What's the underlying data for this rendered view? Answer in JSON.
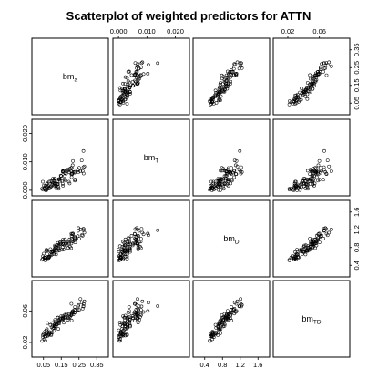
{
  "chart_data": {
    "type": "scatter-matrix",
    "title": "Scatterplot of weighted predictors for ATTN",
    "variables": [
      {
        "base": "bm",
        "sub": "a",
        "range": [
          0.0,
          0.4
        ],
        "ticks": [
          "0.05",
          "0.15",
          "0.25",
          "0.35"
        ],
        "tick_values": [
          0.05,
          0.15,
          0.25,
          0.35
        ]
      },
      {
        "base": "bm",
        "sub": "T",
        "range": [
          -0.001,
          0.024
        ],
        "ticks": [
          "0.000",
          "0.010",
          "0.020"
        ],
        "tick_values": [
          0.0,
          0.01,
          0.02
        ]
      },
      {
        "base": "bm",
        "sub": "D",
        "range": [
          0.2,
          1.8
        ],
        "ticks": [
          "0.4",
          "0.8",
          "1.2",
          "1.6"
        ],
        "tick_values": [
          0.4,
          0.8,
          1.2,
          1.6
        ]
      },
      {
        "base": "bm",
        "sub": "TD",
        "range": [
          0.005,
          0.095
        ],
        "ticks": [
          "0.02",
          "0.06"
        ],
        "tick_values": [
          0.02,
          0.06
        ]
      }
    ],
    "top_axis_vars": [
      1,
      3
    ],
    "bottom_axis_vars": [
      0,
      2
    ],
    "left_axis_vars": [
      1,
      3
    ],
    "right_axis_vars": [
      0,
      2
    ],
    "n_points": 100,
    "observations": {
      "bm_a": [
        0.181,
        0.226,
        0.159,
        0.206,
        0.227,
        0.094,
        0.208,
        0.115,
        0.218,
        0.159,
        0.144,
        0.073,
        0.058,
        0.188,
        0.15,
        0.062,
        0.177,
        0.276,
        0.147,
        0.084,
        0.265,
        0.214,
        0.251,
        0.197,
        0.113,
        0.208,
        0.245,
        0.28,
        0.258,
        0.11,
        0.196,
        0.212,
        0.082,
        0.114,
        0.243,
        0.136,
        0.166,
        0.13,
        0.27,
        0.216,
        0.125,
        0.247,
        0.12,
        0.193,
        0.226,
        0.171,
        0.275,
        0.207,
        0.275,
        0.214,
        0.119,
        0.164,
        0.116,
        0.131,
        0.046,
        0.042,
        0.061,
        0.228,
        0.103,
        0.187,
        0.07,
        0.099,
        0.136,
        0.065,
        0.207,
        0.169,
        0.07,
        0.052,
        0.134,
        0.159,
        0.076,
        0.057,
        0.112,
        0.226,
        0.087,
        0.1,
        0.055,
        0.089,
        0.174,
        0.066,
        0.141,
        0.079,
        0.209,
        0.158,
        0.16,
        0.121,
        0.139,
        0.131,
        0.155,
        0.069,
        0.108,
        0.096,
        0.137,
        0.047,
        0.06,
        0.094,
        0.199,
        0.079,
        0.103,
        0.112
      ],
      "bm_T": [
        0.0069,
        0.0065,
        0.0068,
        0.0079,
        0.0037,
        0.0014,
        0.0046,
        0.004,
        0.0064,
        0.0064,
        0.0033,
        0.0012,
        0.001,
        0.0069,
        0.005,
        0.0,
        0.0058,
        0.0059,
        0.0052,
        0.0007,
        0.0105,
        0.0088,
        0.0079,
        0.0024,
        0.0022,
        0.0057,
        0.0072,
        0.0084,
        0.0067,
        0.0017,
        0.0063,
        0.0057,
        0.003,
        0.0025,
        0.007,
        0.0039,
        0.0038,
        0.0023,
        0.0068,
        0.0103,
        0.0022,
        0.0064,
        0.0014,
        0.003,
        0.0062,
        0.0061,
        0.0138,
        0.0057,
        0.0081,
        0.006,
        0.0019,
        0.0069,
        0.0031,
        0.002,
        0.003,
        0.0005,
        0.0002,
        0.0037,
        0.0027,
        0.0073,
        0.0011,
        0.002,
        0.0005,
        0.0001,
        0.0066,
        0.005,
        0.0024,
        0.0017,
        0.0012,
        0.0066,
        0.0017,
        0.0007,
        0.0033,
        0.0034,
        0.0009,
        0.0019,
        0.0006,
        0.0031,
        0.0034,
        0.0,
        0.004,
        0.0008,
        0.0078,
        0.0023,
        0.0016,
        0.0007,
        0.0039,
        0.0022,
        0.0033,
        0.0021,
        0.0031,
        0.0032,
        0.0038,
        0.0002,
        0.0015,
        0.0014,
        0.0076,
        0.0006,
        0.0041,
        0.0041
      ],
      "bm_D": [
        0.847,
        0.97,
        0.88,
        0.787,
        1.004,
        0.696,
        1.063,
        0.821,
        0.946,
        0.977,
        0.919,
        0.722,
        0.575,
        0.792,
        0.876,
        0.563,
        0.893,
        1.215,
        0.898,
        0.59,
        1.075,
        1.099,
        1.0,
        0.983,
        0.703,
        1.0,
        1.176,
        1.136,
        1.208,
        0.742,
        0.903,
        1.101,
        0.597,
        0.844,
        1.055,
        0.773,
        0.946,
        0.856,
        1.068,
        1.114,
        0.85,
        1.237,
        0.818,
        0.931,
        1.034,
        0.983,
        1.19,
        1.111,
        1.223,
        0.978,
        0.797,
        0.756,
        0.742,
        0.903,
        0.549,
        0.524,
        0.507,
        0.915,
        0.719,
        0.929,
        0.566,
        0.647,
        0.829,
        0.715,
        0.892,
        0.848,
        0.591,
        0.662,
        0.759,
        0.886,
        0.558,
        0.534,
        0.729,
        1.017,
        0.646,
        0.722,
        0.573,
        0.764,
        0.872,
        0.751,
        0.877,
        0.582,
        0.934,
        0.809,
        0.93,
        0.643,
        0.731,
        0.726,
        0.747,
        0.735,
        0.658,
        0.7,
        0.794,
        0.604,
        0.527,
        0.629,
        0.82,
        0.566,
        0.703,
        0.766
      ],
      "bm_TD": [
        0.0562,
        0.058,
        0.0499,
        0.0546,
        0.065,
        0.0293,
        0.0567,
        0.0486,
        0.0556,
        0.0506,
        0.0503,
        0.0447,
        0.0337,
        0.0508,
        0.0534,
        0.0274,
        0.0551,
        0.0687,
        0.0506,
        0.0333,
        0.0704,
        0.0587,
        0.0614,
        0.054,
        0.0402,
        0.0479,
        0.0658,
        0.0721,
        0.0752,
        0.0351,
        0.0561,
        0.0588,
        0.0302,
        0.0409,
        0.0614,
        0.0487,
        0.0523,
        0.0514,
        0.0628,
        0.0599,
        0.0427,
        0.0675,
        0.0403,
        0.0508,
        0.0617,
        0.0552,
        0.0662,
        0.069,
        0.0657,
        0.0578,
        0.045,
        0.0451,
        0.0469,
        0.0516,
        0.0293,
        0.0218,
        0.0222,
        0.0602,
        0.0376,
        0.0487,
        0.0283,
        0.0326,
        0.0454,
        0.0355,
        0.055,
        0.0513,
        0.0288,
        0.031,
        0.0372,
        0.0513,
        0.0286,
        0.028,
        0.0425,
        0.0582,
        0.032,
        0.0447,
        0.0241,
        0.0421,
        0.0519,
        0.0317,
        0.0489,
        0.0324,
        0.0562,
        0.0486,
        0.0534,
        0.0424,
        0.0441,
        0.0437,
        0.0477,
        0.0369,
        0.0385,
        0.0394,
        0.0465,
        0.0266,
        0.0301,
        0.0309,
        0.0523,
        0.0303,
        0.0415,
        0.0403
      ]
    }
  }
}
